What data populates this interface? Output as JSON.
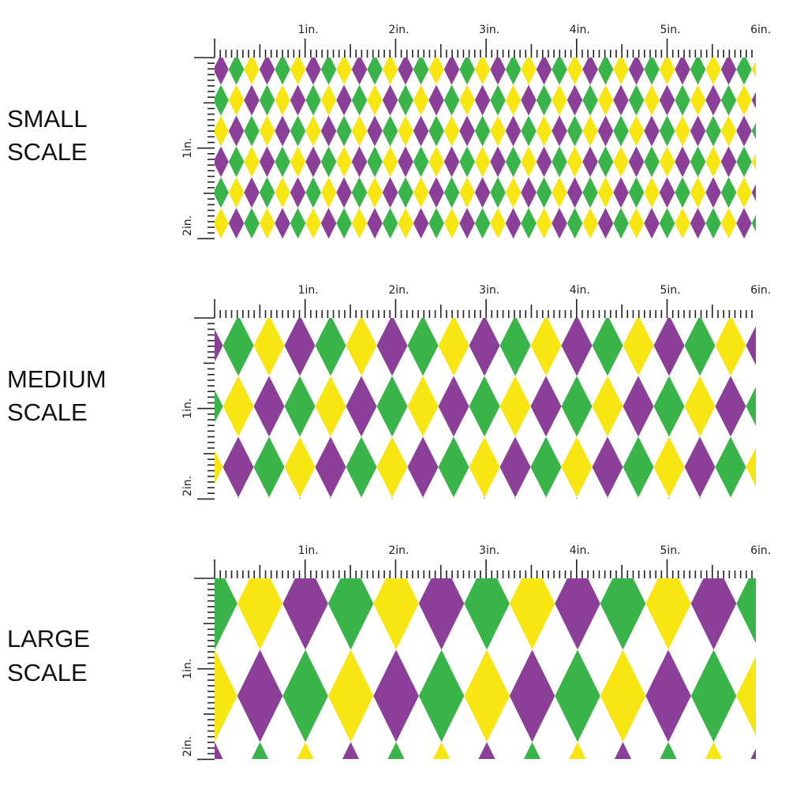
{
  "colors": {
    "purple": "#8B3F98",
    "green": "#39B449",
    "yellow": "#F7E611",
    "ruler": "#222222"
  },
  "panels": [
    {
      "name": "small",
      "label_line1": "SMALL",
      "label_line2": "SCALE",
      "first_row_colors": [
        "purple",
        "green",
        "yellow"
      ]
    },
    {
      "name": "medium",
      "label_line1": "MEDIUM",
      "label_line2": "SCALE",
      "first_row_colors": [
        "purple",
        "green",
        "yellow"
      ]
    },
    {
      "name": "large",
      "label_line1": "LARGE",
      "label_line2": "SCALE",
      "first_row_colors": [
        "green",
        "yellow",
        "purple"
      ]
    }
  ],
  "ruler": {
    "top_labels": [
      "1in.",
      "2in.",
      "3in.",
      "4in.",
      "5in.",
      "6in."
    ],
    "left_labels": [
      "1in.",
      "2in."
    ]
  }
}
